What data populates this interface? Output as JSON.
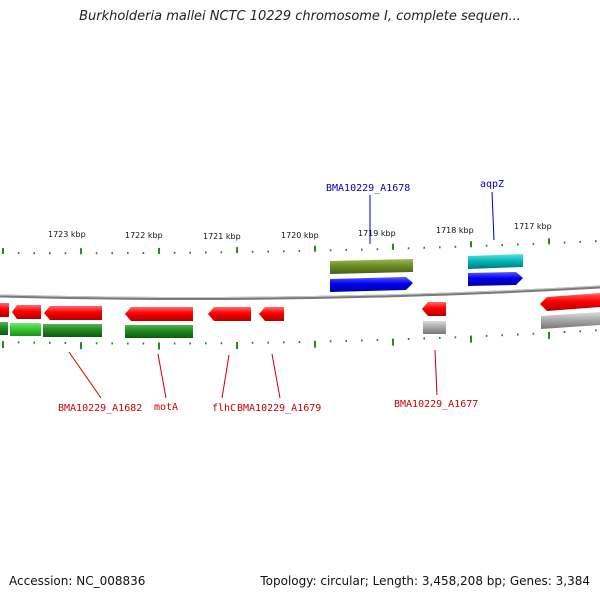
{
  "title": "Burkholderia mallei NCTC 10229 chromosome I, complete sequen...",
  "footer": {
    "accession": "Accession: NC_008836",
    "summary": "Topology: circular; Length: 3,458,208 bp; Genes: 3,384"
  },
  "ruler_labels": [
    "1723 kbp",
    "1722 kbp",
    "1721 kbp",
    "1720 kbp",
    "1719 kbp",
    "1718 kbp",
    "1717 kbp"
  ],
  "gene_labels": [
    {
      "text": "BMA10229_A1678",
      "color": "#0000cc"
    },
    {
      "text": "aqpZ",
      "color": "#0000cc"
    },
    {
      "text": "BMA10229_A1682",
      "color": "#cc0000"
    },
    {
      "text": "motA",
      "color": "#cc0000"
    },
    {
      "text": "flhC",
      "color": "#cc0000"
    },
    {
      "text": "BMA10229_A1679",
      "color": "#cc0000"
    },
    {
      "text": "BMA10229_A1677",
      "color": "#cc0000"
    }
  ],
  "colors": {
    "cds": "#ff0000",
    "gene": "#1a8a1a",
    "gene_light": "#33cc33",
    "olive": "#6b8e23",
    "blue": "#0000ee",
    "cyan": "#00bbbb",
    "grey": "#aaaaaa",
    "backbone": "#808080",
    "tick": "#228b22"
  }
}
